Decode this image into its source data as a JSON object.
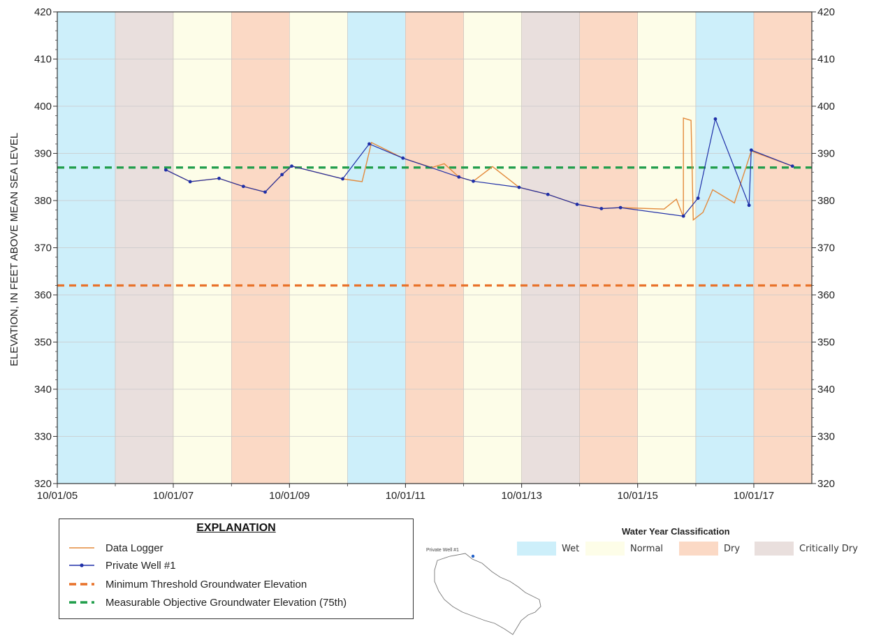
{
  "chart_data": {
    "type": "line",
    "ylabel": "ELEVATION, IN FEET ABOVE MEAN SEA LEVEL",
    "xlabel": "",
    "ylim": [
      320,
      420
    ],
    "yticks": [
      320,
      330,
      340,
      350,
      360,
      370,
      380,
      390,
      400,
      410,
      420
    ],
    "ytick_labels": [
      "320",
      "330",
      "340",
      "350",
      "360",
      "370",
      "380",
      "390",
      "400",
      "410",
      "420"
    ],
    "xlim": [
      "2005-10-01",
      "2018-10-01"
    ],
    "xticks": [
      "2005-10-01",
      "2007-10-01",
      "2009-10-01",
      "2011-10-01",
      "2013-10-01",
      "2015-10-01",
      "2017-10-01"
    ],
    "xtick_labels": [
      "10/01/05",
      "10/01/07",
      "10/01/09",
      "10/01/11",
      "10/01/13",
      "10/01/15",
      "10/01/17"
    ],
    "grid": true,
    "water_years": [
      {
        "start": "2005-10-01",
        "end": "2006-10-01",
        "class": "wet"
      },
      {
        "start": "2006-10-01",
        "end": "2007-10-01",
        "class": "critically_dry"
      },
      {
        "start": "2007-10-01",
        "end": "2008-10-01",
        "class": "normal"
      },
      {
        "start": "2008-10-01",
        "end": "2009-10-01",
        "class": "dry"
      },
      {
        "start": "2009-10-01",
        "end": "2010-10-01",
        "class": "normal"
      },
      {
        "start": "2010-10-01",
        "end": "2011-10-01",
        "class": "wet"
      },
      {
        "start": "2011-10-01",
        "end": "2012-10-01",
        "class": "dry"
      },
      {
        "start": "2012-10-01",
        "end": "2013-10-01",
        "class": "normal"
      },
      {
        "start": "2013-10-01",
        "end": "2014-10-01",
        "class": "critically_dry"
      },
      {
        "start": "2014-10-01",
        "end": "2015-10-01",
        "class": "dry"
      },
      {
        "start": "2015-10-01",
        "end": "2016-10-01",
        "class": "normal"
      },
      {
        "start": "2016-10-01",
        "end": "2017-10-01",
        "class": "wet"
      },
      {
        "start": "2017-10-01",
        "end": "2018-10-01",
        "class": "dry"
      }
    ],
    "class_colors": {
      "wet": "#cdeffa",
      "normal": "#fdfde8",
      "dry": "#fbd9c5",
      "critically_dry": "#e9dfdd"
    },
    "thresholds": [
      {
        "name": "Minimum Threshold Groundwater Elevation",
        "value": 362,
        "color": "#e8722a"
      },
      {
        "name": "Measurable Objective Groundwater Elevation (75th)",
        "value": 387,
        "color": "#1f9d4a"
      }
    ],
    "series": [
      {
        "name": "Private Well #1",
        "color": "#1f2fa8",
        "points": [
          [
            "2007-08-15",
            386.5
          ],
          [
            "2008-01-15",
            384.0
          ],
          [
            "2008-07-15",
            384.7
          ],
          [
            "2008-12-15",
            383.0
          ],
          [
            "2009-05-01",
            381.8
          ],
          [
            "2009-08-15",
            385.5
          ],
          [
            "2009-10-15",
            387.3
          ],
          [
            "2010-09-01",
            384.6
          ],
          [
            "2011-02-15",
            392.0
          ],
          [
            "2011-09-15",
            389.0
          ],
          [
            "2012-09-01",
            385.0
          ],
          [
            "2012-12-01",
            384.1
          ],
          [
            "2013-09-15",
            382.8
          ],
          [
            "2014-03-15",
            381.3
          ],
          [
            "2014-09-15",
            379.2
          ],
          [
            "2015-02-15",
            378.3
          ],
          [
            "2015-06-15",
            378.5
          ],
          [
            "2016-07-15",
            376.7
          ],
          [
            "2016-10-15",
            380.5
          ],
          [
            "2017-09-01",
            379.0
          ],
          [
            "2017-02-01",
            397.3
          ],
          [
            "2017-09-15",
            390.7
          ],
          [
            "2018-06-01",
            387.3
          ]
        ]
      },
      {
        "name": "Data Logger",
        "color": "#e38a3c",
        "points": [
          [
            "2007-08-15",
            386.5
          ],
          [
            "2008-01-15",
            384.0
          ],
          [
            "2008-07-15",
            384.7
          ],
          [
            "2008-12-15",
            383.0
          ],
          [
            "2009-05-01",
            381.8
          ],
          [
            "2009-08-15",
            385.5
          ],
          [
            "2009-10-15",
            387.3
          ],
          [
            "2010-09-01",
            384.6
          ],
          [
            "2011-01-01",
            384.0
          ],
          [
            "2011-03-01",
            392.3
          ],
          [
            "2011-09-15",
            389.0
          ],
          [
            "2012-03-15",
            387.0
          ],
          [
            "2012-06-01",
            387.8
          ],
          [
            "2012-09-01",
            385.0
          ],
          [
            "2012-12-01",
            384.1
          ],
          [
            "2013-04-01",
            387.2
          ],
          [
            "2013-09-15",
            382.8
          ],
          [
            "2014-03-15",
            381.3
          ],
          [
            "2014-09-15",
            379.2
          ],
          [
            "2015-02-15",
            378.3
          ],
          [
            "2015-06-15",
            378.5
          ],
          [
            "2016-07-15",
            376.5
          ],
          [
            "2016-09-15",
            375.9
          ],
          [
            "2016-11-15",
            377.5
          ],
          [
            "2017-01-15",
            382.3
          ],
          [
            "2017-06-01",
            379.5
          ],
          [
            "2016-03-15",
            378.2
          ],
          [
            "2016-06-01",
            380.3
          ],
          [
            "2016-07-15",
            397.5
          ],
          [
            "2016-09-01",
            397.0
          ],
          [
            "2017-09-15",
            390.5
          ],
          [
            "2018-06-01",
            387.3
          ]
        ]
      }
    ]
  },
  "explanation": {
    "title": "EXPLANATION",
    "items": [
      {
        "label": "Data Logger",
        "kind": "line",
        "color": "#e38a3c"
      },
      {
        "label": "Private Well #1",
        "kind": "line-marker",
        "color": "#1f2fa8"
      },
      {
        "label": "Minimum Threshold Groundwater Elevation",
        "kind": "dash",
        "color": "#e8722a"
      },
      {
        "label": "Measurable Objective Groundwater Elevation (75th)",
        "kind": "dash",
        "color": "#1f9d4a"
      }
    ]
  },
  "water_year_legend": {
    "title": "Water Year Classification",
    "items": [
      {
        "label": "Wet",
        "color": "#cdeffa"
      },
      {
        "label": "Normal",
        "color": "#fdfde8"
      },
      {
        "label": "Dry",
        "color": "#fbd9c5"
      },
      {
        "label": "Critically Dry",
        "color": "#e9dfdd"
      }
    ]
  },
  "inset_map": {
    "label": "Private Well #1",
    "well_color": "#1f5fc8"
  }
}
